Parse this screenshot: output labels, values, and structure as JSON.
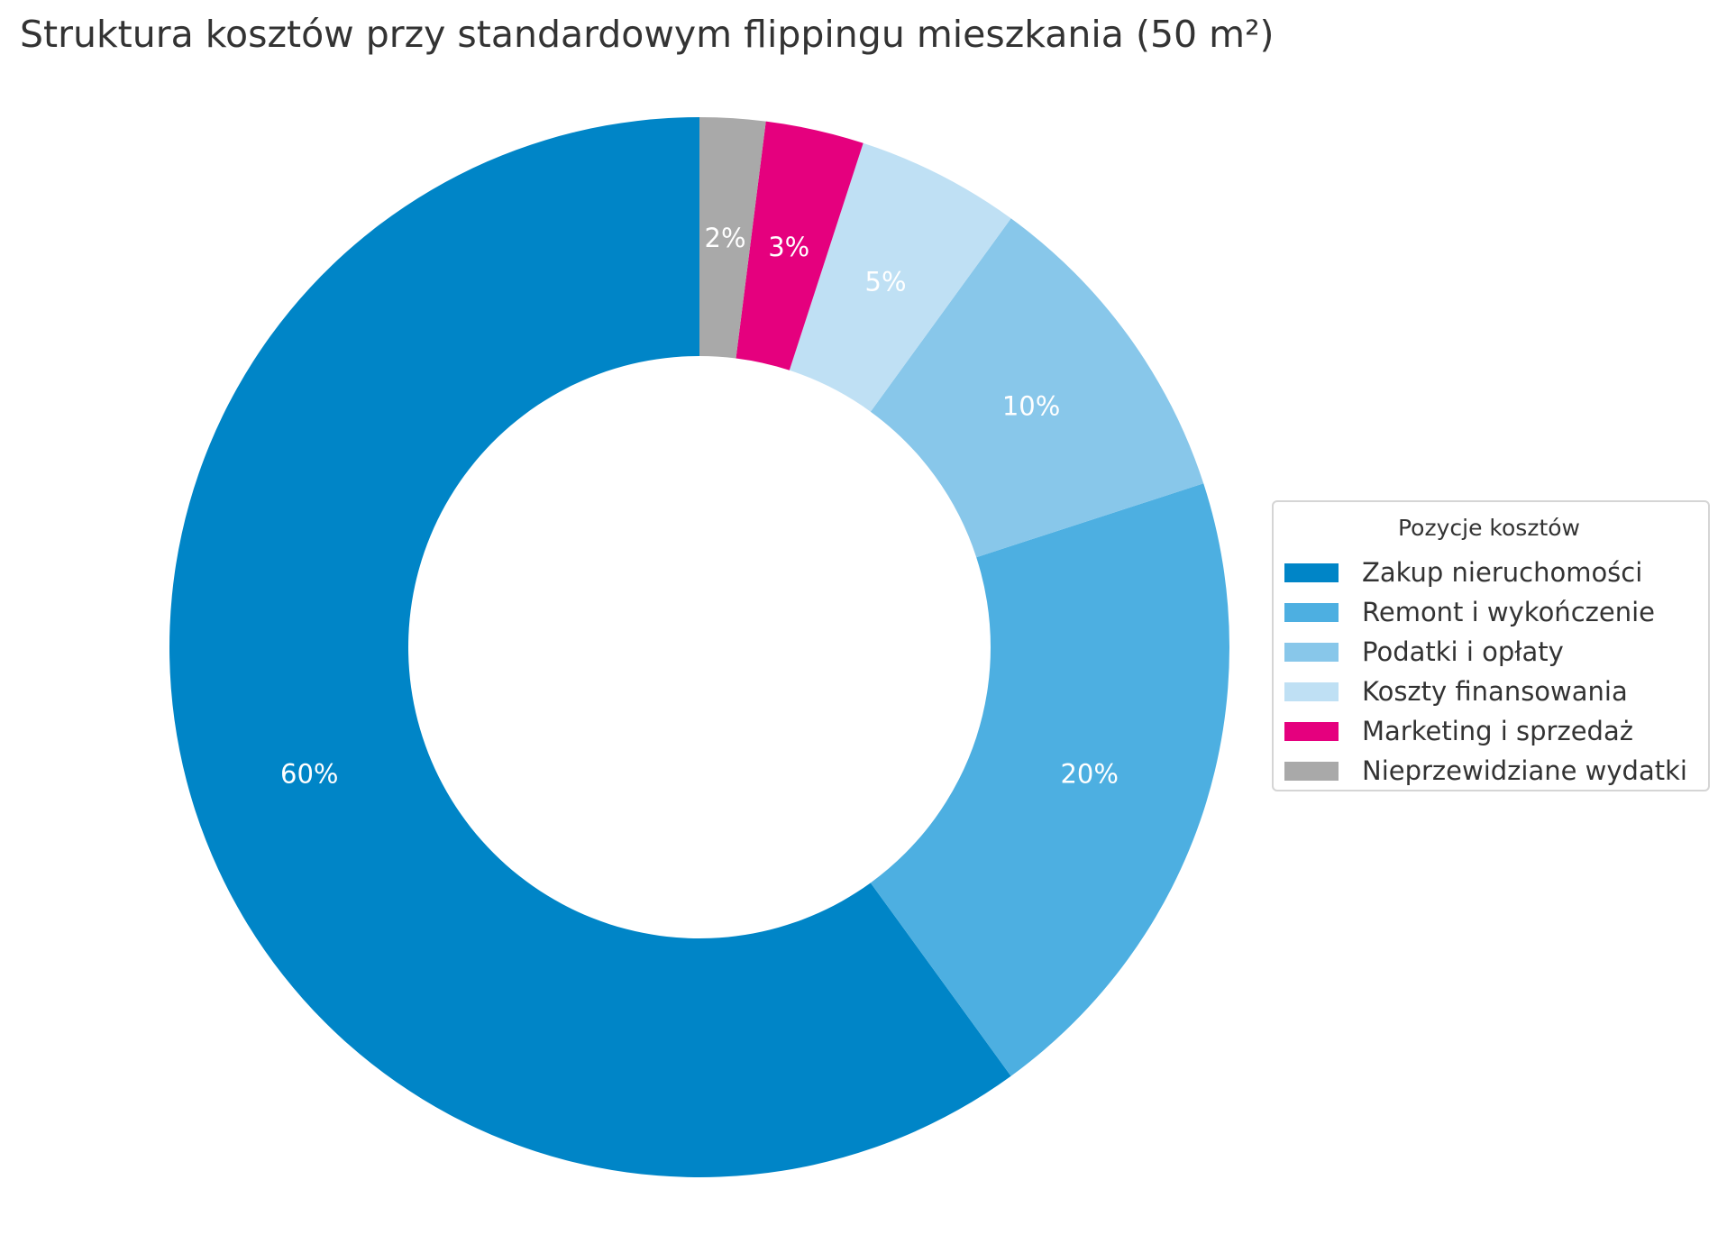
{
  "chart_data": {
    "type": "pie",
    "variant": "donut",
    "title": "Struktura kosztów przy standardowym flippingu mieszkania (50 m²)",
    "legend_title": "Pozycje kosztów",
    "legend_position": "right",
    "start": "top, counter-clockwise",
    "slices": [
      {
        "label": "Zakup nieruchomości",
        "value": 60,
        "display": "60%",
        "color": "#0085C7"
      },
      {
        "label": "Remont i wykończenie",
        "value": 20,
        "display": "20%",
        "color": "#4DAFE1"
      },
      {
        "label": "Podatki i opłaty",
        "value": 10,
        "display": "10%",
        "color": "#88C7EA"
      },
      {
        "label": "Koszty finansowania",
        "value": 5,
        "display": "5%",
        "color": "#BFE0F4"
      },
      {
        "label": "Marketing i sprzedaż",
        "value": 3,
        "display": "3%",
        "color": "#E5007E"
      },
      {
        "label": "Nieprzewidziane wydatki",
        "value": 2,
        "display": "2%",
        "color": "#A9A9A9"
      }
    ]
  }
}
